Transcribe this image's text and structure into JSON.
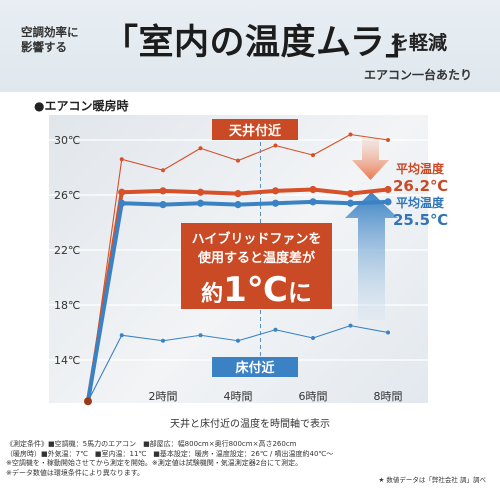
{
  "header": {
    "small_line1": "空調効率に",
    "small_line2": "影響する",
    "big_title": "「室内の温度ムラ」",
    "tail": "を軽減",
    "per_unit": "エアコン一台あたり"
  },
  "section_title": "●エアコン暖房時",
  "callout": {
    "line1": "ハイブリッドファンを",
    "line2": "使用すると温度差が",
    "line3_prefix": "約",
    "line3_big": "1℃",
    "line3_suffix": "に"
  },
  "labels": {
    "ceiling": "天井付近",
    "floor": "床付近",
    "avg_label_top": "平均温度",
    "avg_value_top": "26.2℃",
    "avg_label_bottom": "平均温度",
    "avg_value_bottom": "25.5℃"
  },
  "caption": "天井と床付近の温度を時間軸で表示",
  "notes": [
    "《測定条件》■空調機：5馬力のエアコン　■部屋広：幅800cm×奥行800cm×高さ260cm",
    "（暖房時）■外気温：7℃　■室内温：11℃　■基本設定：暖房・温度設定：26℃ / 噴出温度約40℃〜",
    "※空調機を・稼動開始させてから測定を開始。※測定値は試験機関・気温測定器2台にて測定。",
    "※データ数値は環境条件により異なります。"
  ],
  "source": "★ 数値データは「弊社会社 調」調べ",
  "colors": {
    "ceiling": "#d6502a",
    "floor": "#3a82c4",
    "label_box": "#c94a24",
    "floor_box": "#3a82c4"
  },
  "chart_data": {
    "type": "line",
    "x_label_unit": "時間",
    "xlim": [
      0,
      8.6
    ],
    "ylim": [
      12,
      31.5
    ],
    "y_ticks": [
      14,
      18,
      22,
      26,
      30
    ],
    "y_tick_labels": [
      "14℃",
      "18℃",
      "22℃",
      "26℃",
      "30℃"
    ],
    "x_ticks": [
      2,
      4,
      6,
      8
    ],
    "x_tick_labels": [
      "2時間",
      "4時間",
      "6時間",
      "8時間"
    ],
    "series": [
      {
        "name": "天井付近",
        "style": "thin",
        "color": "#d6502a",
        "x": [
          0,
          0.9,
          2,
          3,
          4,
          5,
          6,
          7,
          8
        ],
        "y": [
          11,
          28.6,
          27.8,
          29.4,
          28.5,
          29.6,
          28.9,
          30.4,
          30.0
        ]
      },
      {
        "name": "天井付近 平均",
        "style": "thick",
        "color": "#d6502a",
        "x": [
          0,
          0.9,
          2,
          3,
          4,
          5,
          6,
          7,
          8
        ],
        "y": [
          11,
          26.2,
          26.3,
          26.2,
          26.1,
          26.3,
          26.4,
          26.1,
          26.4
        ]
      },
      {
        "name": "床付近 平均",
        "style": "thick",
        "color": "#3a82c4",
        "x": [
          0,
          0.9,
          2,
          3,
          4,
          5,
          6,
          7,
          8
        ],
        "y": [
          11,
          25.4,
          25.3,
          25.4,
          25.3,
          25.4,
          25.5,
          25.4,
          25.5
        ]
      },
      {
        "name": "床付近",
        "style": "thin",
        "color": "#3a82c4",
        "x": [
          0,
          0.9,
          2,
          3,
          4,
          5,
          6,
          7,
          8
        ],
        "y": [
          11,
          15.8,
          15.4,
          15.8,
          15.4,
          16.2,
          15.6,
          16.5,
          16.0
        ]
      }
    ]
  }
}
